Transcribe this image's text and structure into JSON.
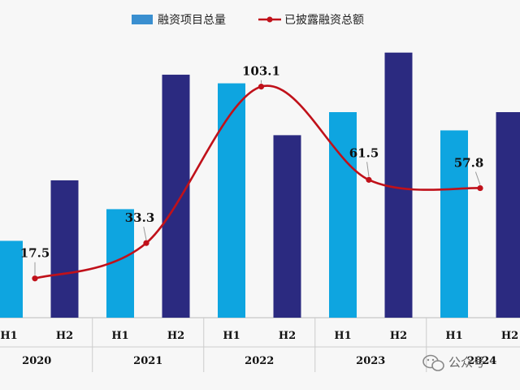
{
  "chart_data": {
    "type": "bar",
    "title": "",
    "xlabel": "",
    "ylabel": "",
    "grid": false,
    "legend_position": "top",
    "years": [
      "2020",
      "2021",
      "2022",
      "2023",
      "2024"
    ],
    "categories": [
      "H1",
      "H2",
      "H1",
      "H2",
      "H1",
      "H2",
      "H1",
      "H2",
      "H1",
      "H2"
    ],
    "series": [
      {
        "name": "融资项目总量",
        "type": "bar",
        "colors": [
          "#0ea5e0",
          "#2b2a80"
        ],
        "values": [
          80,
          143,
          113,
          253,
          244,
          190,
          214,
          276,
          195,
          214
        ]
      },
      {
        "name": "已披露融资总额",
        "type": "line",
        "color": "#c0111a",
        "points": [
          {
            "category": "2020 H1",
            "value": 17.5
          },
          {
            "category": "2021 H1",
            "value": 33.3
          },
          {
            "category": "2022 H2",
            "value": 103.1
          },
          {
            "category": "2023 H1",
            "value": 61.5
          },
          {
            "category": "2024 H1",
            "value": 57.8
          }
        ],
        "labels": [
          "17.5",
          "33.3",
          "103.1",
          "61.5",
          "57.8"
        ]
      }
    ],
    "bar_axis_ylim": [
      0,
      280
    ],
    "line_axis_ylim": [
      0,
      120
    ]
  },
  "watermark": {
    "text": "公众号 ·",
    "icon": "wechat-icon"
  }
}
